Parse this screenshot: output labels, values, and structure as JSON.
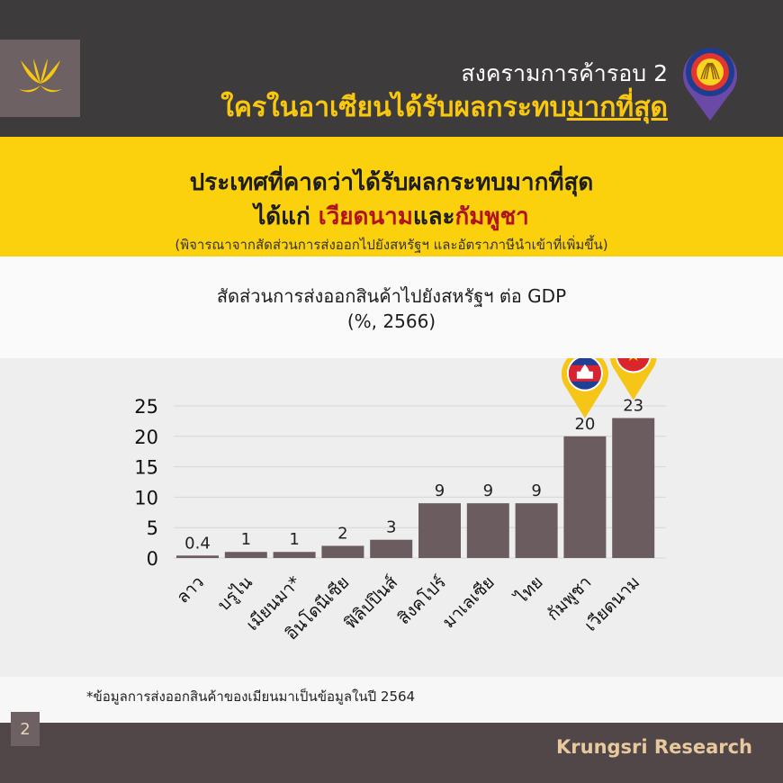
{
  "header": {
    "title_line1": "สงครามการค้ารอบ 2",
    "title_line2_prefix": "ใครในอาเซียนได้รับผลกระทบ",
    "title_line2_underlined": "มากที่สุด",
    "logo_icon": "krungsri-logo-icon",
    "asean_pin_icon": "asean-emblem-pin-icon"
  },
  "band": {
    "line1": "ประเทศที่คาดว่าได้รับผลกระทบมากที่สุด",
    "line2_prefix": "ได้แก่ ",
    "line2_highlight1": "เวียดนาม",
    "line2_middle": "และ",
    "line2_highlight2": "กัมพูชา",
    "line3": "(พิจารณาจากสัดส่วนการส่งออกไปยังสหรัฐฯ และอัตราภาษีนำเข้าที่เพิ่มขึ้น)"
  },
  "chart_data": {
    "type": "bar",
    "title": "สัดส่วนการส่งออกสินค้าไปยังสหรัฐฯ ต่อ GDP",
    "subtitle": "(%, 2566)",
    "categories": [
      "ลาว",
      "บรูไน",
      "เมียนมา*",
      "อินโดนีเซีย",
      "ฟิลิปปินส์",
      "สิงคโปร์",
      "มาเลเซีย",
      "ไทย",
      "กัมพูชา",
      "เวียดนาม"
    ],
    "values": [
      0.4,
      1,
      1,
      2,
      3,
      9,
      9,
      9,
      20,
      23
    ],
    "data_labels": [
      "0.4",
      "1",
      "1",
      "2",
      "3",
      "9",
      "9",
      "9",
      "20",
      "23"
    ],
    "yticks": [
      "0",
      "5",
      "10",
      "15",
      "20",
      "25"
    ],
    "ylim": [
      0,
      25
    ],
    "grid": true,
    "bar_color": "#6b5d5f",
    "flag_markers": [
      {
        "category": "กัมพูชา",
        "icon": "cambodia-flag-pin-icon"
      },
      {
        "category": "เวียดนาม",
        "icon": "vietnam-flag-pin-icon"
      }
    ]
  },
  "footnote": "*ข้อมูลการส่งออกสินค้าของเมียนมาเป็นข้อมูลในปี 2564",
  "footer": {
    "page_number": "2",
    "brand": "Krungsri Research"
  },
  "colors": {
    "header_bg": "#3e3b3d",
    "accent_yellow": "#fbd10d",
    "highlight_red": "#b0131d",
    "footer_bg": "#514748",
    "brand_text": "#e8c99e"
  }
}
